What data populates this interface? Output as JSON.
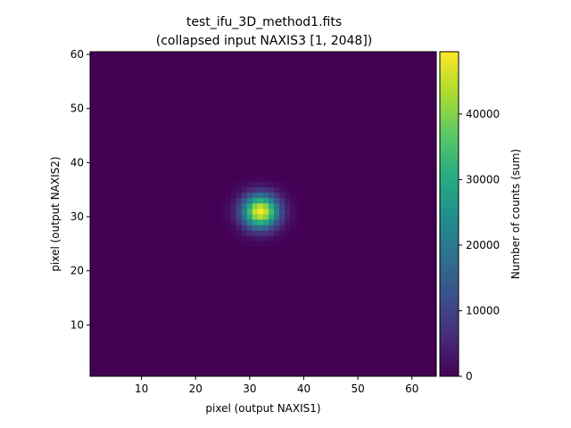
{
  "chart_data": {
    "type": "heatmap",
    "title": "test_ifu_3D_method1.fits",
    "subtitle": "(collapsed input NAXIS3 [1, 2048])",
    "xlabel": "pixel (output NAXIS1)",
    "ylabel": "pixel (output NAXIS2)",
    "xlim": [
      0.5,
      64.5
    ],
    "ylim": [
      0.5,
      60.5
    ],
    "xticks": [
      10,
      20,
      30,
      40,
      50,
      60
    ],
    "yticks": [
      10,
      20,
      30,
      40,
      50,
      60
    ],
    "grid": false,
    "colormap": "viridis",
    "background_value": 0,
    "peak": {
      "x": 32,
      "y": 31,
      "value": 49500
    },
    "blob_sigma_x": 2.3,
    "blob_sigma_y": 2.1,
    "colorbar": {
      "label": "Number of counts (sum)",
      "range": [
        0,
        49500
      ],
      "ticks": [
        0,
        10000,
        20000,
        30000,
        40000
      ]
    }
  }
}
